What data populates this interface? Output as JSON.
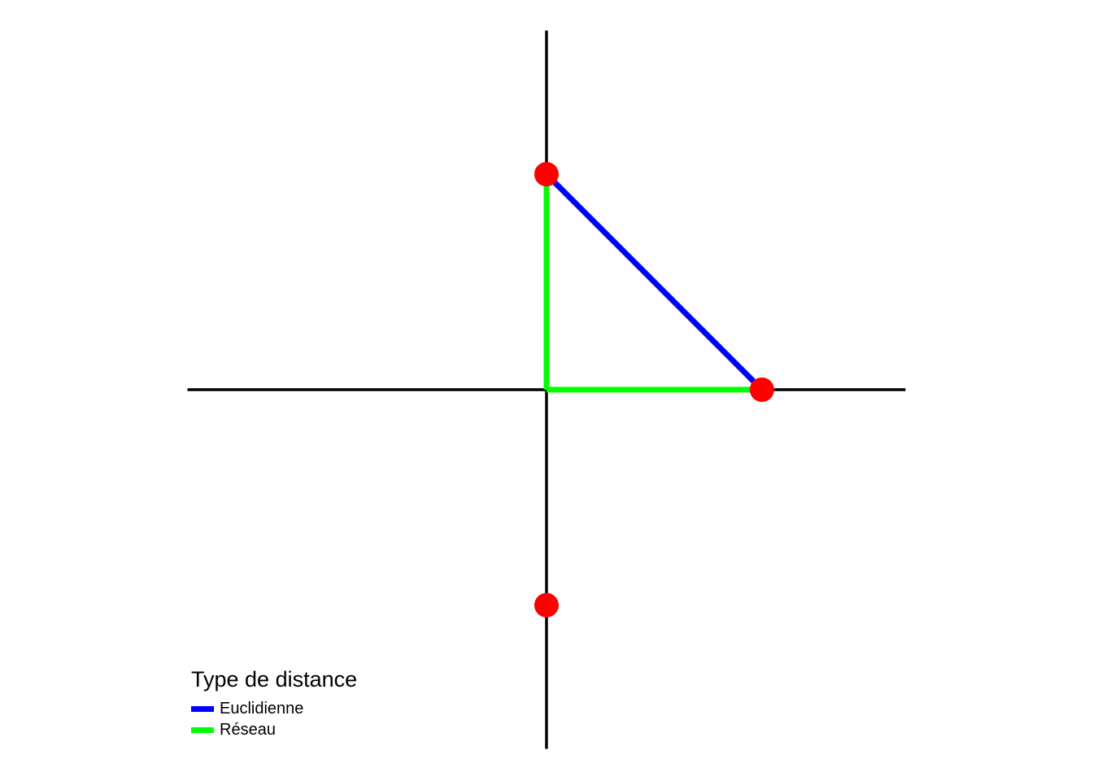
{
  "diagram": {
    "axes": {
      "x_range": [
        -5,
        5
      ],
      "y_range": [
        -5,
        5
      ],
      "color": "#000000"
    },
    "points": [
      {
        "x": 0,
        "y": 3
      },
      {
        "x": 3,
        "y": 0
      },
      {
        "x": 0,
        "y": -3
      }
    ],
    "point_color": "#ff0000",
    "segments": [
      {
        "type": "euclidean",
        "from": [
          0,
          3
        ],
        "to": [
          3,
          0
        ],
        "color": "#0000ff"
      },
      {
        "type": "network",
        "from": [
          0,
          3
        ],
        "to": [
          0,
          0
        ],
        "color": "#00ff00"
      },
      {
        "type": "network",
        "from": [
          0,
          0
        ],
        "to": [
          3,
          0
        ],
        "color": "#00ff00"
      }
    ]
  },
  "legend": {
    "title": "Type de distance",
    "items": [
      {
        "label": "Euclidienne",
        "color": "#0000ff"
      },
      {
        "label": "Réseau",
        "color": "#00ff00"
      }
    ]
  }
}
